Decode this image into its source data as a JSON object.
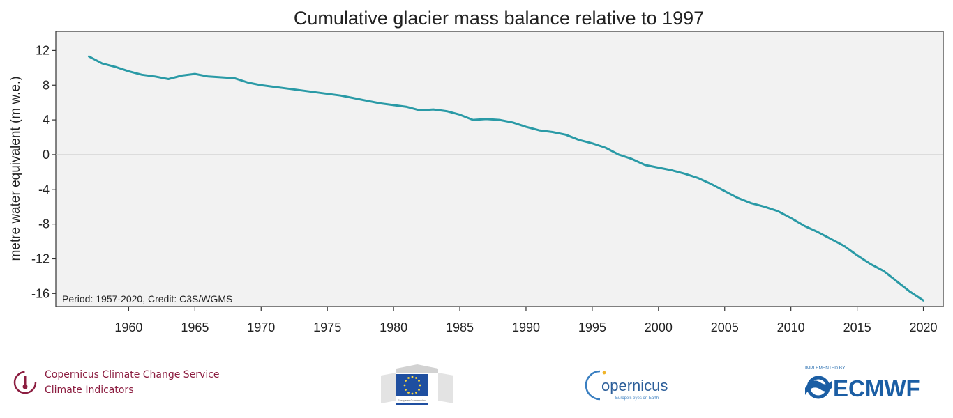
{
  "chart_data": {
    "type": "line",
    "title": "Cumulative glacier mass balance relative to 1997",
    "ylabel": "metre water equivalent (m w.e.)",
    "xlabel": "",
    "annotation": "Period: 1957-2020, Credit: C3S/WGMS",
    "xlim": [
      1954.5,
      2021.5
    ],
    "ylim": [
      -17.5,
      14.2
    ],
    "x_ticks": [
      1960,
      1965,
      1970,
      1975,
      1980,
      1985,
      1990,
      1995,
      2000,
      2005,
      2010,
      2015,
      2020
    ],
    "y_ticks": [
      12,
      8,
      4,
      0,
      -4,
      -8,
      -12,
      -16
    ],
    "grid": false,
    "reference_line": 0,
    "colors": {
      "line": "#2a9aa6",
      "panel": "#f2f2f2",
      "zero_line": "#cfcfcf"
    },
    "series": [
      {
        "x": [
          1957,
          1958,
          1959,
          1960,
          1961,
          1962,
          1963,
          1964,
          1965,
          1966,
          1967,
          1968,
          1969,
          1970,
          1971,
          1972,
          1973,
          1974,
          1975,
          1976,
          1977,
          1978,
          1979,
          1980,
          1981,
          1982,
          1983,
          1984,
          1985,
          1986,
          1987,
          1988,
          1989,
          1990,
          1991,
          1992,
          1993,
          1994,
          1995,
          1996,
          1997,
          1998,
          1999,
          2000,
          2001,
          2002,
          2003,
          2004,
          2005,
          2006,
          2007,
          2008,
          2009,
          2010,
          2011,
          2012,
          2013,
          2014,
          2015,
          2016,
          2017,
          2018,
          2019,
          2020
        ],
        "y": [
          11.3,
          10.5,
          10.1,
          9.6,
          9.2,
          9.0,
          8.7,
          9.1,
          9.3,
          9.0,
          8.9,
          8.8,
          8.3,
          8.0,
          7.8,
          7.6,
          7.4,
          7.2,
          7.0,
          6.8,
          6.5,
          6.2,
          5.9,
          5.7,
          5.5,
          5.1,
          5.2,
          5.0,
          4.6,
          4.0,
          4.1,
          4.0,
          3.7,
          3.2,
          2.8,
          2.6,
          2.3,
          1.7,
          1.3,
          0.8,
          0.0,
          -0.5,
          -1.2,
          -1.5,
          -1.8,
          -2.2,
          -2.7,
          -3.4,
          -4.2,
          -5.0,
          -5.6,
          -6.0,
          -6.5,
          -7.3,
          -8.2,
          -8.9,
          -9.7,
          -10.5,
          -11.6,
          -12.6,
          -13.4,
          -14.6,
          -15.8,
          -16.8
        ]
      }
    ]
  },
  "footer": {
    "c3s_line1": "Copernicus Climate Change Service",
    "c3s_line2": "Climate Indicators",
    "eu_label": "European Commission",
    "copernicus_word": "opernicus",
    "copernicus_tagline": "Europe's eyes on Earth",
    "ecmwf_tagline": "IMPLEMENTED BY",
    "ecmwf_word": "ECMWF"
  }
}
